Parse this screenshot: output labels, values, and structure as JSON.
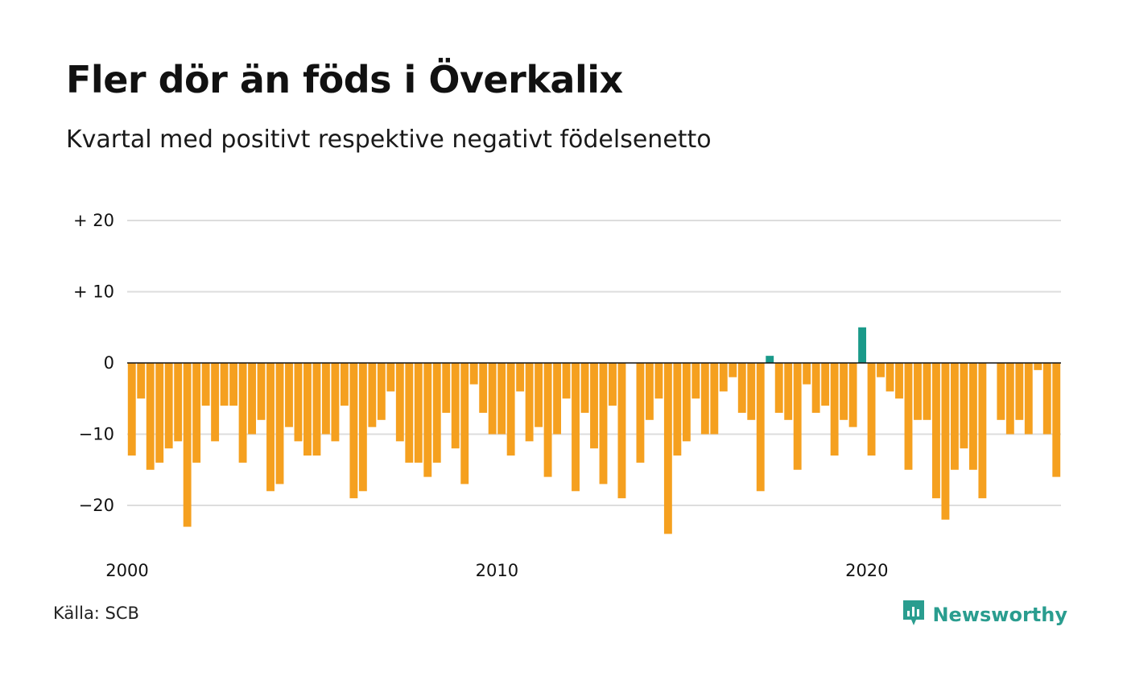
{
  "title": "Fler dör än föds i Överkalix",
  "subtitle": "Kvartal med positivt respektive negativt födelsenetto",
  "source": "Källa: SCB",
  "brand": {
    "name": "Newsworthy",
    "icon": "newsworthy-logo-icon",
    "color": "#2a9d8f"
  },
  "colors": {
    "positive": "#1a9a8a",
    "negative": "#f5a01f",
    "grid": "#dddddd",
    "zero_line": "#111111"
  },
  "chart_data": {
    "type": "bar",
    "title": "Fler dör än föds i Överkalix",
    "subtitle": "Kvartal med positivt respektive negativt födelsenetto",
    "xlabel": "",
    "ylabel": "",
    "ylim": [
      -25,
      22
    ],
    "yticks": [
      {
        "value": 20,
        "label": "+ 20"
      },
      {
        "value": 10,
        "label": "+ 10"
      },
      {
        "value": 0,
        "label": "0"
      },
      {
        "value": -10,
        "label": "−10"
      },
      {
        "value": -20,
        "label": "−20"
      }
    ],
    "xticks": [
      {
        "value": 2000,
        "label": "2000"
      },
      {
        "value": 2010,
        "label": "2010"
      },
      {
        "value": 2020,
        "label": "2020"
      }
    ],
    "x_start_year": 2000,
    "periods_per_year": 4,
    "grid": true,
    "values": [
      -13,
      -5,
      -15,
      -14,
      -12,
      -11,
      -23,
      -14,
      -6,
      -11,
      -6,
      -6,
      -14,
      -10,
      -8,
      -18,
      -17,
      -9,
      -11,
      -13,
      -13,
      -10,
      -11,
      -6,
      -19,
      -18,
      -9,
      -8,
      -4,
      -11,
      -14,
      -14,
      -16,
      -14,
      -7,
      -12,
      -17,
      -3,
      -7,
      -10,
      -10,
      -13,
      -4,
      -11,
      -9,
      -16,
      -10,
      -5,
      -18,
      -7,
      -12,
      -17,
      -6,
      -19,
      0,
      -14,
      -8,
      -5,
      -24,
      -13,
      -11,
      -5,
      -10,
      -10,
      -4,
      -2,
      -7,
      -8,
      -18,
      1,
      -7,
      -8,
      -15,
      -3,
      -7,
      -6,
      -13,
      -8,
      -9,
      5,
      -13,
      -2,
      -4,
      -5,
      -15,
      -8,
      -8,
      -19,
      -22,
      -15,
      -12,
      -15,
      -19,
      0,
      -8,
      -10,
      -8,
      -10,
      -1,
      -10,
      -16
    ]
  }
}
